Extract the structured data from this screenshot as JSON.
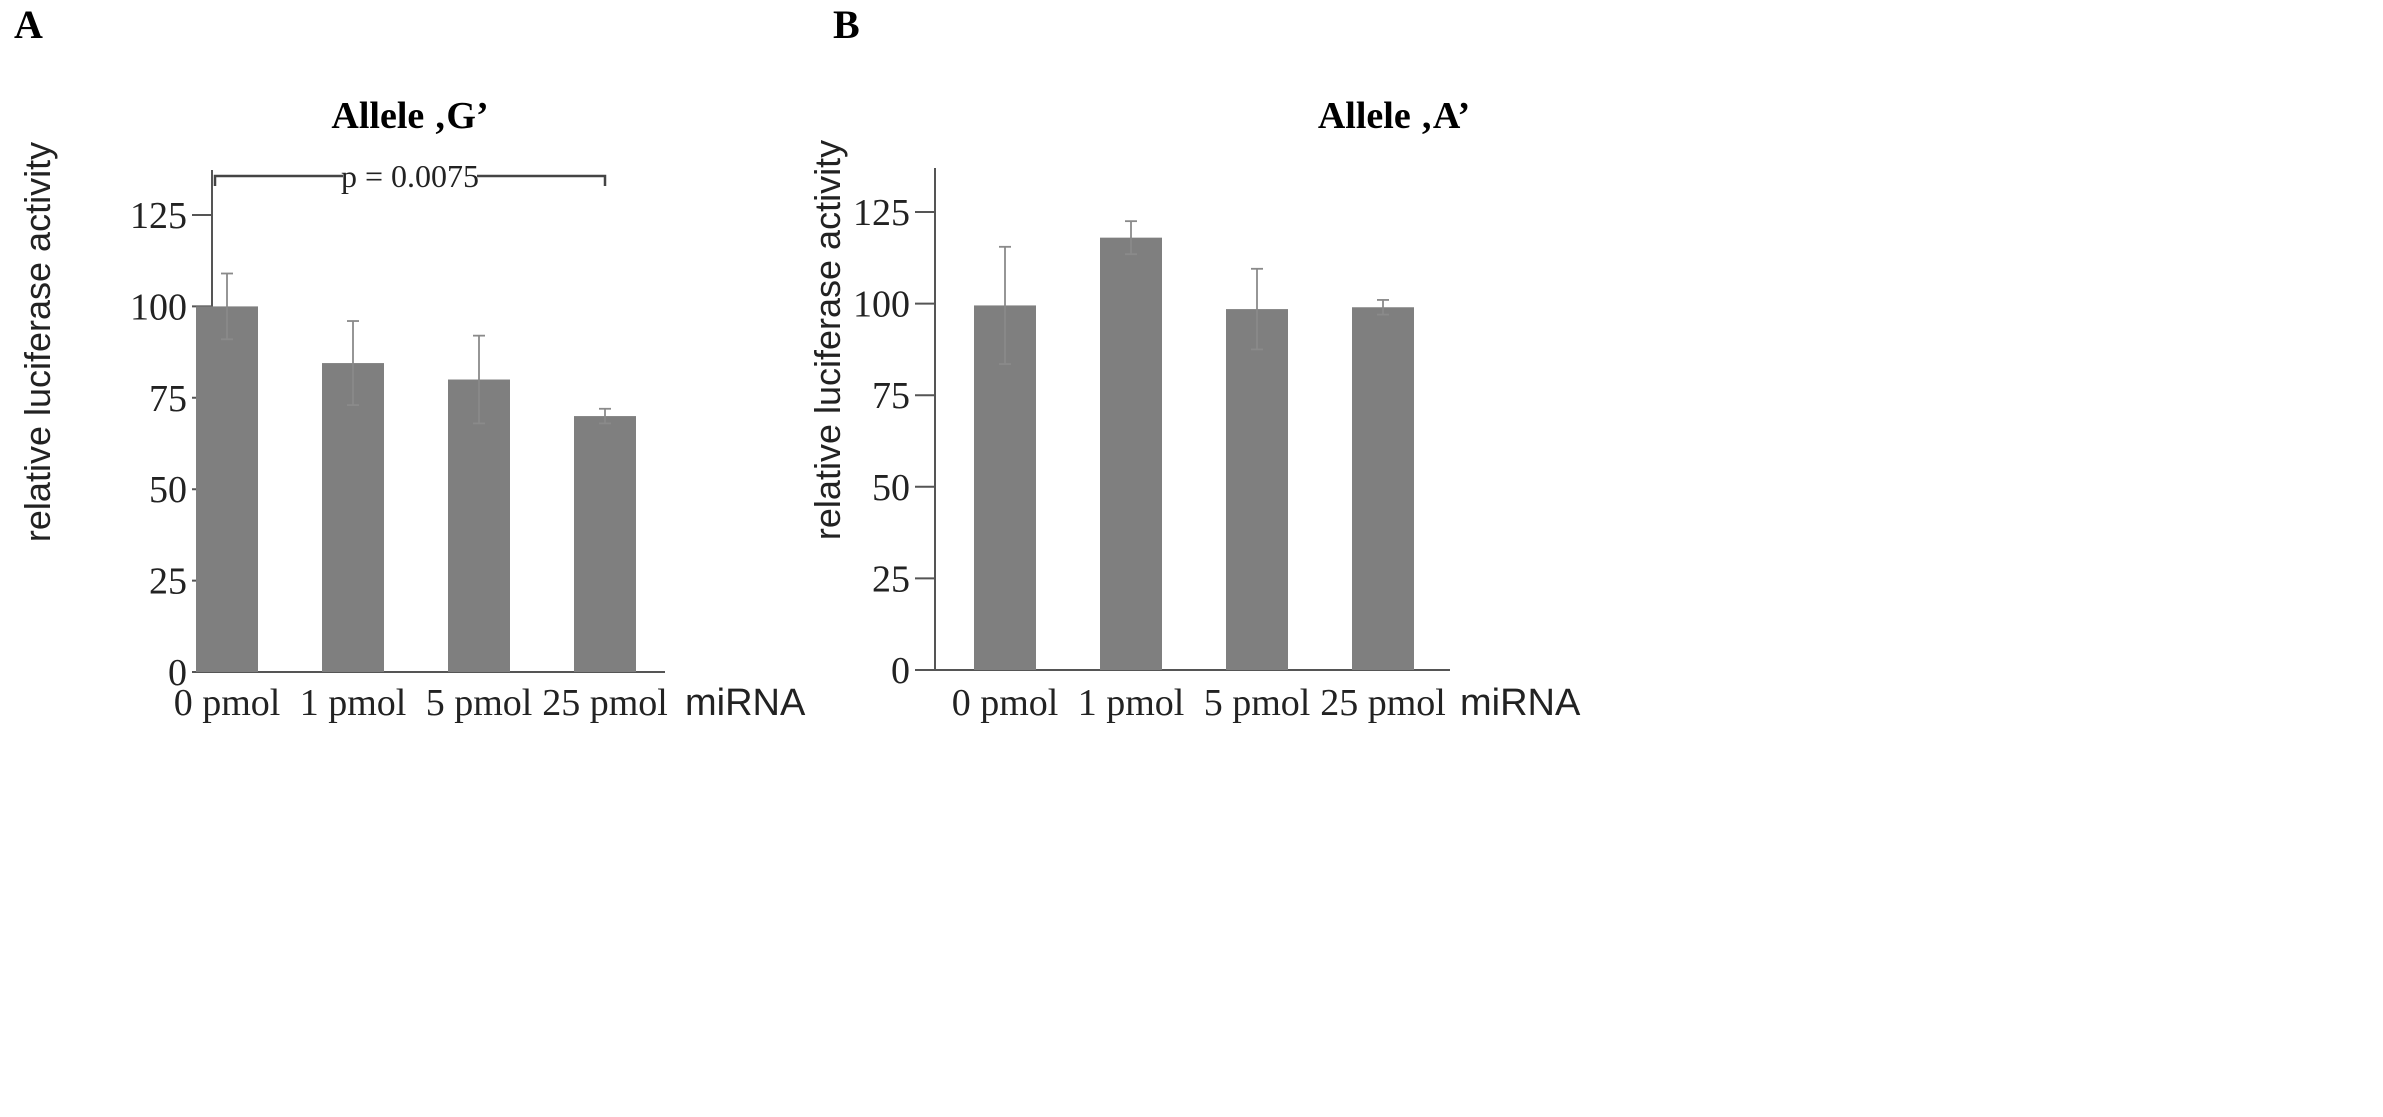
{
  "chart_data": [
    {
      "type": "bar",
      "panel": "A",
      "title": "Allele ‚G’",
      "xlabel": "miRNA",
      "ylabel": "relative luciferase activity",
      "ylim": [
        0,
        137
      ],
      "yticks": [
        0,
        25,
        50,
        75,
        100,
        125
      ],
      "categories": [
        "0 pmol",
        "1 pmol",
        "5 pmol",
        "25 pmol"
      ],
      "values": [
        100,
        84.5,
        80,
        70
      ],
      "errors": [
        9,
        11.5,
        12,
        2
      ],
      "bar_color": "#7f7f7f",
      "annotation": {
        "text": "p = 0.0075",
        "from": "0 pmol",
        "to": "25 pmol"
      }
    },
    {
      "type": "bar",
      "panel": "B",
      "title": "Allele ‚A’",
      "xlabel": "miRNA",
      "ylabel": "relative luciferase activity",
      "ylim": [
        0,
        137
      ],
      "yticks": [
        0,
        25,
        50,
        75,
        100,
        125
      ],
      "categories": [
        "0 pmol",
        "1 pmol",
        "5 pmol",
        "25 pmol"
      ],
      "values": [
        99.5,
        118,
        98.5,
        99
      ],
      "errors": [
        16,
        4.5,
        11,
        2
      ],
      "bar_color": "#7f7f7f"
    }
  ]
}
